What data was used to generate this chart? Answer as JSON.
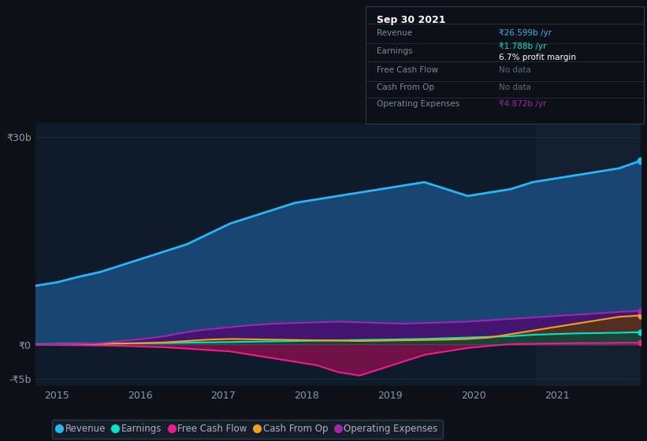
{
  "background_color": "#0d1117",
  "plot_bg": "#0d1b2a",
  "ylim": [
    -6000000000.0,
    32000000000.0
  ],
  "ytick_vals": [
    -5000000000.0,
    0,
    30000000000.0
  ],
  "ytick_labels": [
    "-₹5b",
    "₹0",
    "₹30b"
  ],
  "xtick_vals": [
    2015,
    2016,
    2017,
    2018,
    2019,
    2020,
    2021
  ],
  "xtick_labels": [
    "2015",
    "2016",
    "2017",
    "2018",
    "2019",
    "2020",
    "2021"
  ],
  "grid_color": "#1e2d3e",
  "line_colors": {
    "revenue": "#29b6f6",
    "earnings": "#00e5c8",
    "free_cash_flow": "#e91e8c",
    "cash_from_op": "#f0a020",
    "operating_expenses": "#9c27b0"
  },
  "fill_colors": {
    "revenue": "#1a4a7a",
    "earnings": "#004d40",
    "free_cash_flow": "#880e4f",
    "cash_from_op": "#5a3a00",
    "operating_expenses": "#4a1070"
  },
  "revenue": [
    8500000000.0,
    9000000000.0,
    9800000000.0,
    10500000000.0,
    11500000000.0,
    12500000000.0,
    13500000000.0,
    14500000000.0,
    16000000000.0,
    17500000000.0,
    18500000000.0,
    19500000000.0,
    20500000000.0,
    21000000000.0,
    21500000000.0,
    22000000000.0,
    22500000000.0,
    23000000000.0,
    23500000000.0,
    22500000000.0,
    21500000000.0,
    22000000000.0,
    22500000000.0,
    23500000000.0,
    24000000000.0,
    24500000000.0,
    25000000000.0,
    25500000000.0,
    26599000000.0
  ],
  "earnings": [
    50000000.0,
    80000000.0,
    100000000.0,
    120000000.0,
    150000000.0,
    180000000.0,
    200000000.0,
    250000000.0,
    300000000.0,
    350000000.0,
    400000000.0,
    450000000.0,
    500000000.0,
    550000000.0,
    600000000.0,
    650000000.0,
    700000000.0,
    750000000.0,
    800000000.0,
    900000000.0,
    1000000000.0,
    1100000000.0,
    1200000000.0,
    1400000000.0,
    1500000000.0,
    1600000000.0,
    1650000000.0,
    1700000000.0,
    1788000000.0
  ],
  "free_cash_flow": [
    -50000000.0,
    -80000000.0,
    -100000000.0,
    -150000000.0,
    -200000000.0,
    -300000000.0,
    -400000000.0,
    -600000000.0,
    -800000000.0,
    -1000000000.0,
    -1500000000.0,
    -2000000000.0,
    -2500000000.0,
    -3000000000.0,
    -4000000000.0,
    -4500000000.0,
    -3500000000.0,
    -2500000000.0,
    -1500000000.0,
    -1000000000.0,
    -500000000.0,
    -200000000.0,
    50000000.0,
    100000000.0,
    150000000.0,
    200000000.0,
    200000000.0,
    250000000.0,
    250000000.0
  ],
  "cash_from_op": [
    20000000.0,
    50000000.0,
    80000000.0,
    100000000.0,
    150000000.0,
    200000000.0,
    300000000.0,
    500000000.0,
    700000000.0,
    800000000.0,
    750000000.0,
    700000000.0,
    650000000.0,
    600000000.0,
    550000000.0,
    500000000.0,
    550000000.0,
    600000000.0,
    650000000.0,
    700000000.0,
    800000000.0,
    1000000000.0,
    1500000000.0,
    2000000000.0,
    2500000000.0,
    3000000000.0,
    3500000000.0,
    4000000000.0,
    4200000000.0
  ],
  "operating_expenses": [
    0.0,
    50000000.0,
    100000000.0,
    200000000.0,
    500000000.0,
    800000000.0,
    1200000000.0,
    1800000000.0,
    2200000000.0,
    2500000000.0,
    2800000000.0,
    3000000000.0,
    3100000000.0,
    3200000000.0,
    3300000000.0,
    3200000000.0,
    3100000000.0,
    3000000000.0,
    3100000000.0,
    3200000000.0,
    3300000000.0,
    3500000000.0,
    3700000000.0,
    3900000000.0,
    4100000000.0,
    4300000000.0,
    4500000000.0,
    4700000000.0,
    4872000000.0
  ],
  "info_box": {
    "title": "Sep 30 2021",
    "rows": [
      {
        "label": "Revenue",
        "value": "₹26.599b /yr",
        "value_color": "#29b6f6"
      },
      {
        "label": "Earnings",
        "value": "₹1.788b /yr",
        "value_color": "#00e5c8",
        "subtext": "6.7% profit margin"
      },
      {
        "label": "Free Cash Flow",
        "value": "No data",
        "value_color": "#5a6a7a"
      },
      {
        "label": "Cash From Op",
        "value": "No data",
        "value_color": "#5a6a7a"
      },
      {
        "label": "Operating Expenses",
        "value": "₹4.872b /yr",
        "value_color": "#9c27b0"
      }
    ]
  },
  "legend": [
    {
      "label": "Revenue",
      "color": "#29b6f6"
    },
    {
      "label": "Earnings",
      "color": "#00e5c8"
    },
    {
      "label": "Free Cash Flow",
      "color": "#e91e8c"
    },
    {
      "label": "Cash From Op",
      "color": "#f0a020"
    },
    {
      "label": "Operating Expenses",
      "color": "#9c27b0"
    }
  ]
}
